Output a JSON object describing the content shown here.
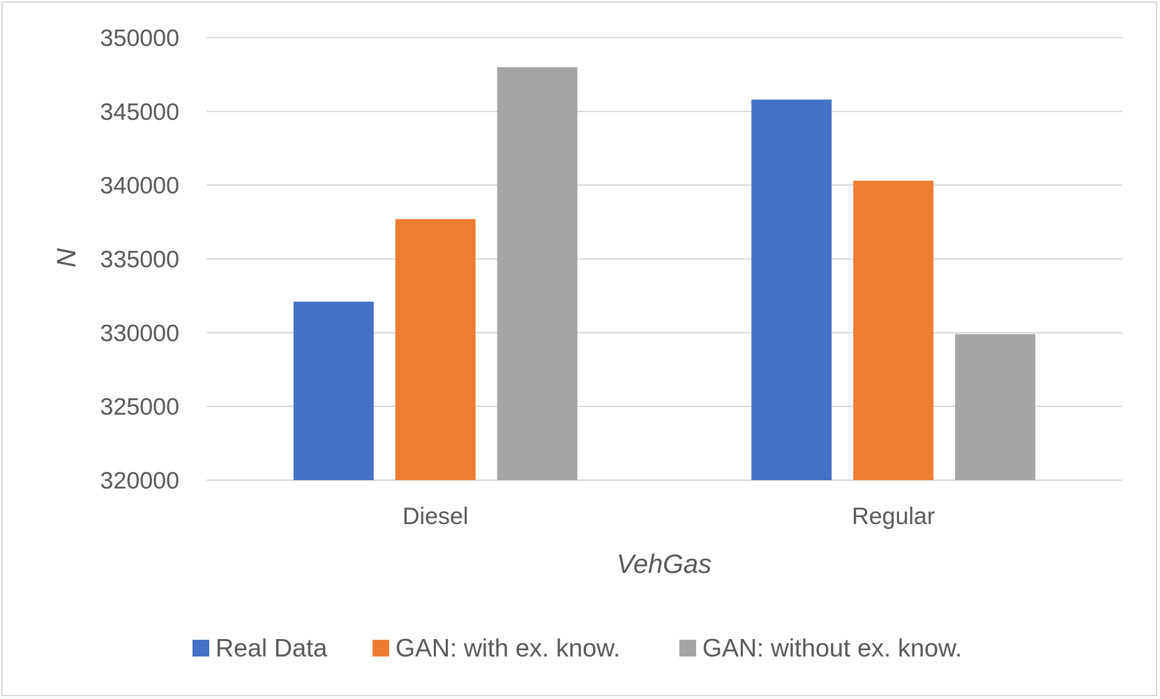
{
  "chart_data": {
    "type": "bar",
    "xlabel": "VehGas",
    "ylabel": "N",
    "categories": [
      "Diesel",
      "Regular"
    ],
    "ylim": [
      320000,
      350000
    ],
    "yticks": [
      320000,
      325000,
      330000,
      335000,
      340000,
      345000,
      350000
    ],
    "grid": true,
    "legend_position": "bottom",
    "series": [
      {
        "name": "Real Data",
        "color": "#4472C4",
        "values": [
          332100,
          345800
        ]
      },
      {
        "name": "GAN: with ex. know.",
        "color": "#ED7D31",
        "values": [
          337700,
          340300
        ]
      },
      {
        "name": "GAN: without ex. know.",
        "color": "#A5A5A5",
        "values": [
          348000,
          329900
        ]
      }
    ]
  }
}
